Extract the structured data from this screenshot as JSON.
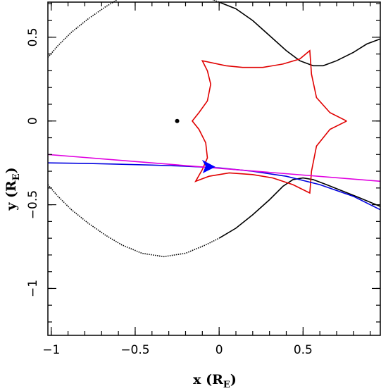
{
  "chart_data": {
    "type": "line",
    "title": "",
    "xlabel": "x (R",
    "xlabel_sub": "E",
    "xlabel_close": ")",
    "ylabel": "y (R",
    "ylabel_sub": "E",
    "ylabel_close": ")",
    "xlim": [
      -1.02,
      0.96
    ],
    "ylim": [
      -1.28,
      0.71
    ],
    "x_ticks": [
      {
        "value": -1,
        "label": "−1"
      },
      {
        "value": -0.5,
        "label": "−0.5"
      },
      {
        "value": 0,
        "label": "0"
      },
      {
        "value": 0.5,
        "label": "0.5"
      }
    ],
    "y_ticks": [
      {
        "value": 0.5,
        "label": "0.5"
      },
      {
        "value": 0,
        "label": "0"
      },
      {
        "value": -0.5,
        "label": "−0.5"
      },
      {
        "value": -1,
        "label": "−1"
      }
    ],
    "grid": false,
    "legend": "none",
    "colors": {
      "caustic": "#e00000",
      "critical_curve": "#000000",
      "trajectory": "#0000e0",
      "trajectory_alt": "#e000e0",
      "lens_position": "#000000",
      "direction_arrow": "#0000ff"
    },
    "lens_point": {
      "x": -0.25,
      "y": 0.0
    },
    "direction_arrow": {
      "x": -0.06,
      "y": -0.27
    },
    "series": [
      {
        "kind": "critical_curve_upper",
        "style": "dotted",
        "points": [
          [
            -1.02,
            0.38
          ],
          [
            -0.96,
            0.45
          ],
          [
            -0.88,
            0.53
          ],
          [
            -0.78,
            0.61
          ],
          [
            -0.68,
            0.68
          ],
          [
            -0.58,
            0.74
          ],
          [
            -0.46,
            0.79
          ],
          [
            -0.33,
            0.81
          ],
          [
            -0.2,
            0.79
          ],
          [
            -0.08,
            0.74
          ],
          [
            0.0,
            0.71
          ]
        ]
      },
      {
        "kind": "critical_curve_upper_right",
        "style": "solid",
        "points": [
          [
            0.0,
            0.71
          ],
          [
            0.1,
            0.67
          ],
          [
            0.2,
            0.6
          ],
          [
            0.3,
            0.51
          ],
          [
            0.4,
            0.42
          ],
          [
            0.48,
            0.36
          ],
          [
            0.56,
            0.33
          ],
          [
            0.62,
            0.33
          ],
          [
            0.7,
            0.36
          ],
          [
            0.8,
            0.41
          ],
          [
            0.88,
            0.46
          ],
          [
            0.96,
            0.49
          ]
        ]
      },
      {
        "kind": "critical_curve_lower",
        "style": "dotted",
        "points": [
          [
            -1.02,
            -0.38
          ],
          [
            -0.96,
            -0.45
          ],
          [
            -0.88,
            -0.53
          ],
          [
            -0.78,
            -0.61
          ],
          [
            -0.68,
            -0.68
          ],
          [
            -0.58,
            -0.74
          ],
          [
            -0.46,
            -0.79
          ],
          [
            -0.33,
            -0.81
          ],
          [
            -0.2,
            -0.79
          ],
          [
            -0.08,
            -0.74
          ],
          [
            0.0,
            -0.7
          ]
        ]
      },
      {
        "kind": "critical_curve_lower_right",
        "style": "solid",
        "points": [
          [
            0.0,
            -0.7
          ],
          [
            0.1,
            -0.64
          ],
          [
            0.2,
            -0.56
          ],
          [
            0.3,
            -0.47
          ],
          [
            0.38,
            -0.39
          ],
          [
            0.44,
            -0.35
          ],
          [
            0.5,
            -0.34
          ],
          [
            0.56,
            -0.35
          ],
          [
            0.64,
            -0.38
          ],
          [
            0.74,
            -0.42
          ],
          [
            0.84,
            -0.46
          ],
          [
            0.96,
            -0.51
          ]
        ]
      },
      {
        "kind": "caustic",
        "style": "solid",
        "points": [
          [
            0.76,
            0.0
          ],
          [
            0.66,
            0.05
          ],
          [
            0.58,
            0.14
          ],
          [
            0.55,
            0.28
          ],
          [
            0.54,
            0.42
          ],
          [
            0.48,
            0.37
          ],
          [
            0.38,
            0.34
          ],
          [
            0.26,
            0.32
          ],
          [
            0.14,
            0.32
          ],
          [
            0.04,
            0.33
          ],
          [
            -0.1,
            0.36
          ],
          [
            -0.07,
            0.3
          ],
          [
            -0.05,
            0.22
          ],
          [
            -0.07,
            0.12
          ],
          [
            -0.12,
            0.05
          ],
          [
            -0.16,
            0.0
          ],
          [
            -0.12,
            -0.05
          ],
          [
            -0.08,
            -0.13
          ],
          [
            -0.07,
            -0.22
          ],
          [
            -0.1,
            -0.29
          ],
          [
            -0.14,
            -0.36
          ],
          [
            -0.06,
            -0.33
          ],
          [
            0.06,
            -0.31
          ],
          [
            0.2,
            -0.32
          ],
          [
            0.32,
            -0.34
          ],
          [
            0.44,
            -0.38
          ],
          [
            0.54,
            -0.43
          ],
          [
            0.55,
            -0.3
          ],
          [
            0.58,
            -0.15
          ],
          [
            0.66,
            -0.05
          ],
          [
            0.76,
            0.0
          ]
        ]
      },
      {
        "kind": "trajectory",
        "style": "solid",
        "points": [
          [
            -1.02,
            -0.25
          ],
          [
            -0.8,
            -0.253
          ],
          [
            -0.6,
            -0.258
          ],
          [
            -0.4,
            -0.263
          ],
          [
            -0.2,
            -0.27
          ],
          [
            0.0,
            -0.28
          ],
          [
            0.2,
            -0.3
          ],
          [
            0.4,
            -0.33
          ],
          [
            0.6,
            -0.38
          ],
          [
            0.8,
            -0.45
          ],
          [
            0.96,
            -0.53
          ]
        ]
      },
      {
        "kind": "trajectory_alt",
        "style": "solid",
        "points": [
          [
            -1.02,
            -0.2
          ],
          [
            0.96,
            -0.36
          ]
        ]
      }
    ]
  }
}
